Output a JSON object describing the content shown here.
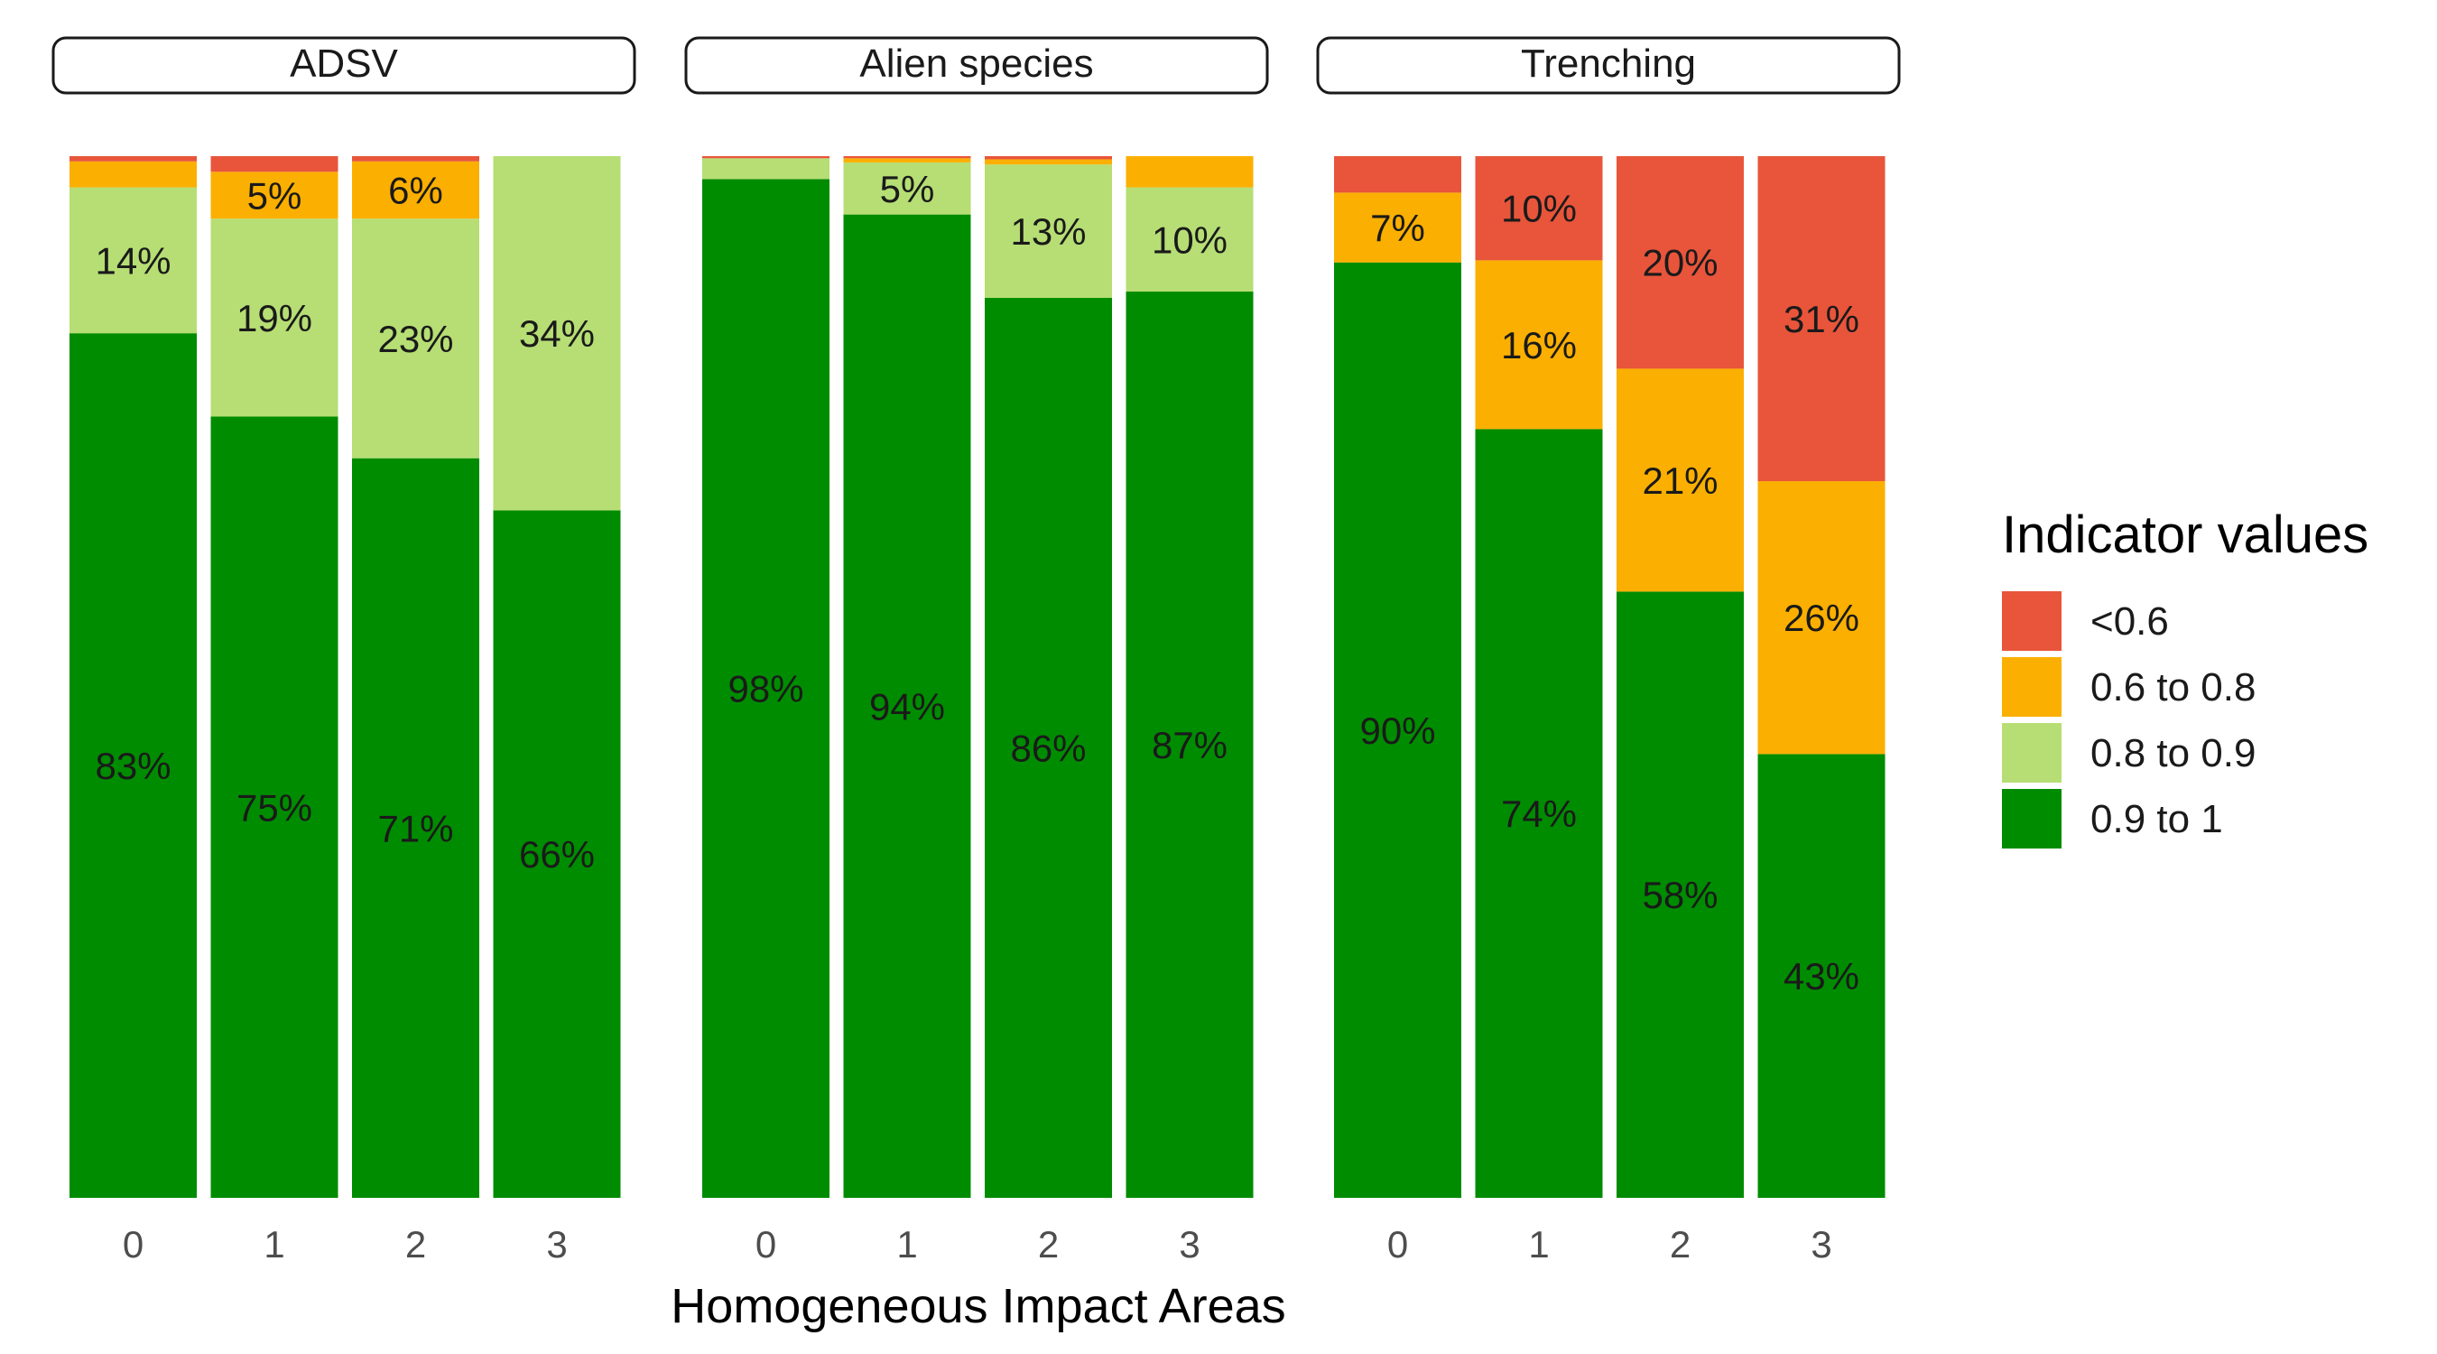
{
  "chart_data": {
    "type": "bar",
    "stacked": true,
    "xlabel": "Homogeneous Impact Areas",
    "ylabel": "",
    "ylim": [
      0,
      100
    ],
    "grid": false,
    "legend": {
      "title": "Indicator values",
      "placement": "right"
    },
    "categories": [
      "0",
      "1",
      "2",
      "3"
    ],
    "series_order_bottom_to_top": [
      "0.9 to 1",
      "0.8 to 0.9",
      "0.6 to 0.8",
      "<0.6"
    ],
    "legend_order": [
      "<0.6",
      "0.6 to 0.8",
      "0.8 to 0.9",
      "0.9 to 1"
    ],
    "colors": {
      "<0.6": "#E8553B",
      "0.6 to 0.8": "#FBAF00",
      "0.8 to 0.9": "#B6DE74",
      "0.9 to 1": "#008C00"
    },
    "panels": [
      {
        "title": "ADSV",
        "series": [
          {
            "name": "0.9 to 1",
            "values": [
              83,
              75,
              71,
              66
            ],
            "labels": [
              "83%",
              "75%",
              "71%",
              "66%"
            ]
          },
          {
            "name": "0.8 to 0.9",
            "values": [
              14,
              19,
              23,
              34
            ],
            "labels": [
              "14%",
              "19%",
              "23%",
              "34%"
            ]
          },
          {
            "name": "0.6 to 0.8",
            "values": [
              2.5,
              4.5,
              5.5,
              0
            ],
            "labels": [
              "",
              "5%",
              "6%",
              ""
            ]
          },
          {
            "name": "<0.6",
            "values": [
              0.5,
              1.5,
              0.5,
              0
            ],
            "labels": [
              "",
              "",
              "",
              ""
            ]
          }
        ]
      },
      {
        "title": "Alien species",
        "series": [
          {
            "name": "0.9 to 1",
            "values": [
              97.8,
              94.4,
              86.4,
              87
            ],
            "labels": [
              "98%",
              "94%",
              "86%",
              "87%"
            ]
          },
          {
            "name": "0.8 to 0.9",
            "values": [
              2,
              5,
              12.8,
              10
            ],
            "labels": [
              "",
              "5%",
              "13%",
              "10%"
            ]
          },
          {
            "name": "0.6 to 0.8",
            "values": [
              0,
              0.4,
              0.5,
              3
            ],
            "labels": [
              "",
              "",
              "",
              ""
            ]
          },
          {
            "name": "<0.6",
            "values": [
              0.2,
              0.2,
              0.3,
              0
            ],
            "labels": [
              "",
              "",
              "",
              ""
            ]
          }
        ]
      },
      {
        "title": "Trenching",
        "series": [
          {
            "name": "0.9 to 1",
            "values": [
              89.8,
              73.8,
              58.2,
              42.6
            ],
            "labels": [
              "90%",
              "74%",
              "58%",
              "43%"
            ]
          },
          {
            "name": "0.8 to 0.9",
            "values": [
              0,
              0,
              0,
              0
            ],
            "labels": [
              "",
              "",
              "",
              ""
            ]
          },
          {
            "name": "0.6 to 0.8",
            "values": [
              6.7,
              16.2,
              21.4,
              26.2
            ],
            "labels": [
              "7%",
              "16%",
              "21%",
              "26%"
            ]
          },
          {
            "name": "<0.6",
            "values": [
              3.5,
              10,
              20.4,
              31.2
            ],
            "labels": [
              "",
              "10%",
              "20%",
              "31%"
            ]
          }
        ]
      }
    ]
  }
}
